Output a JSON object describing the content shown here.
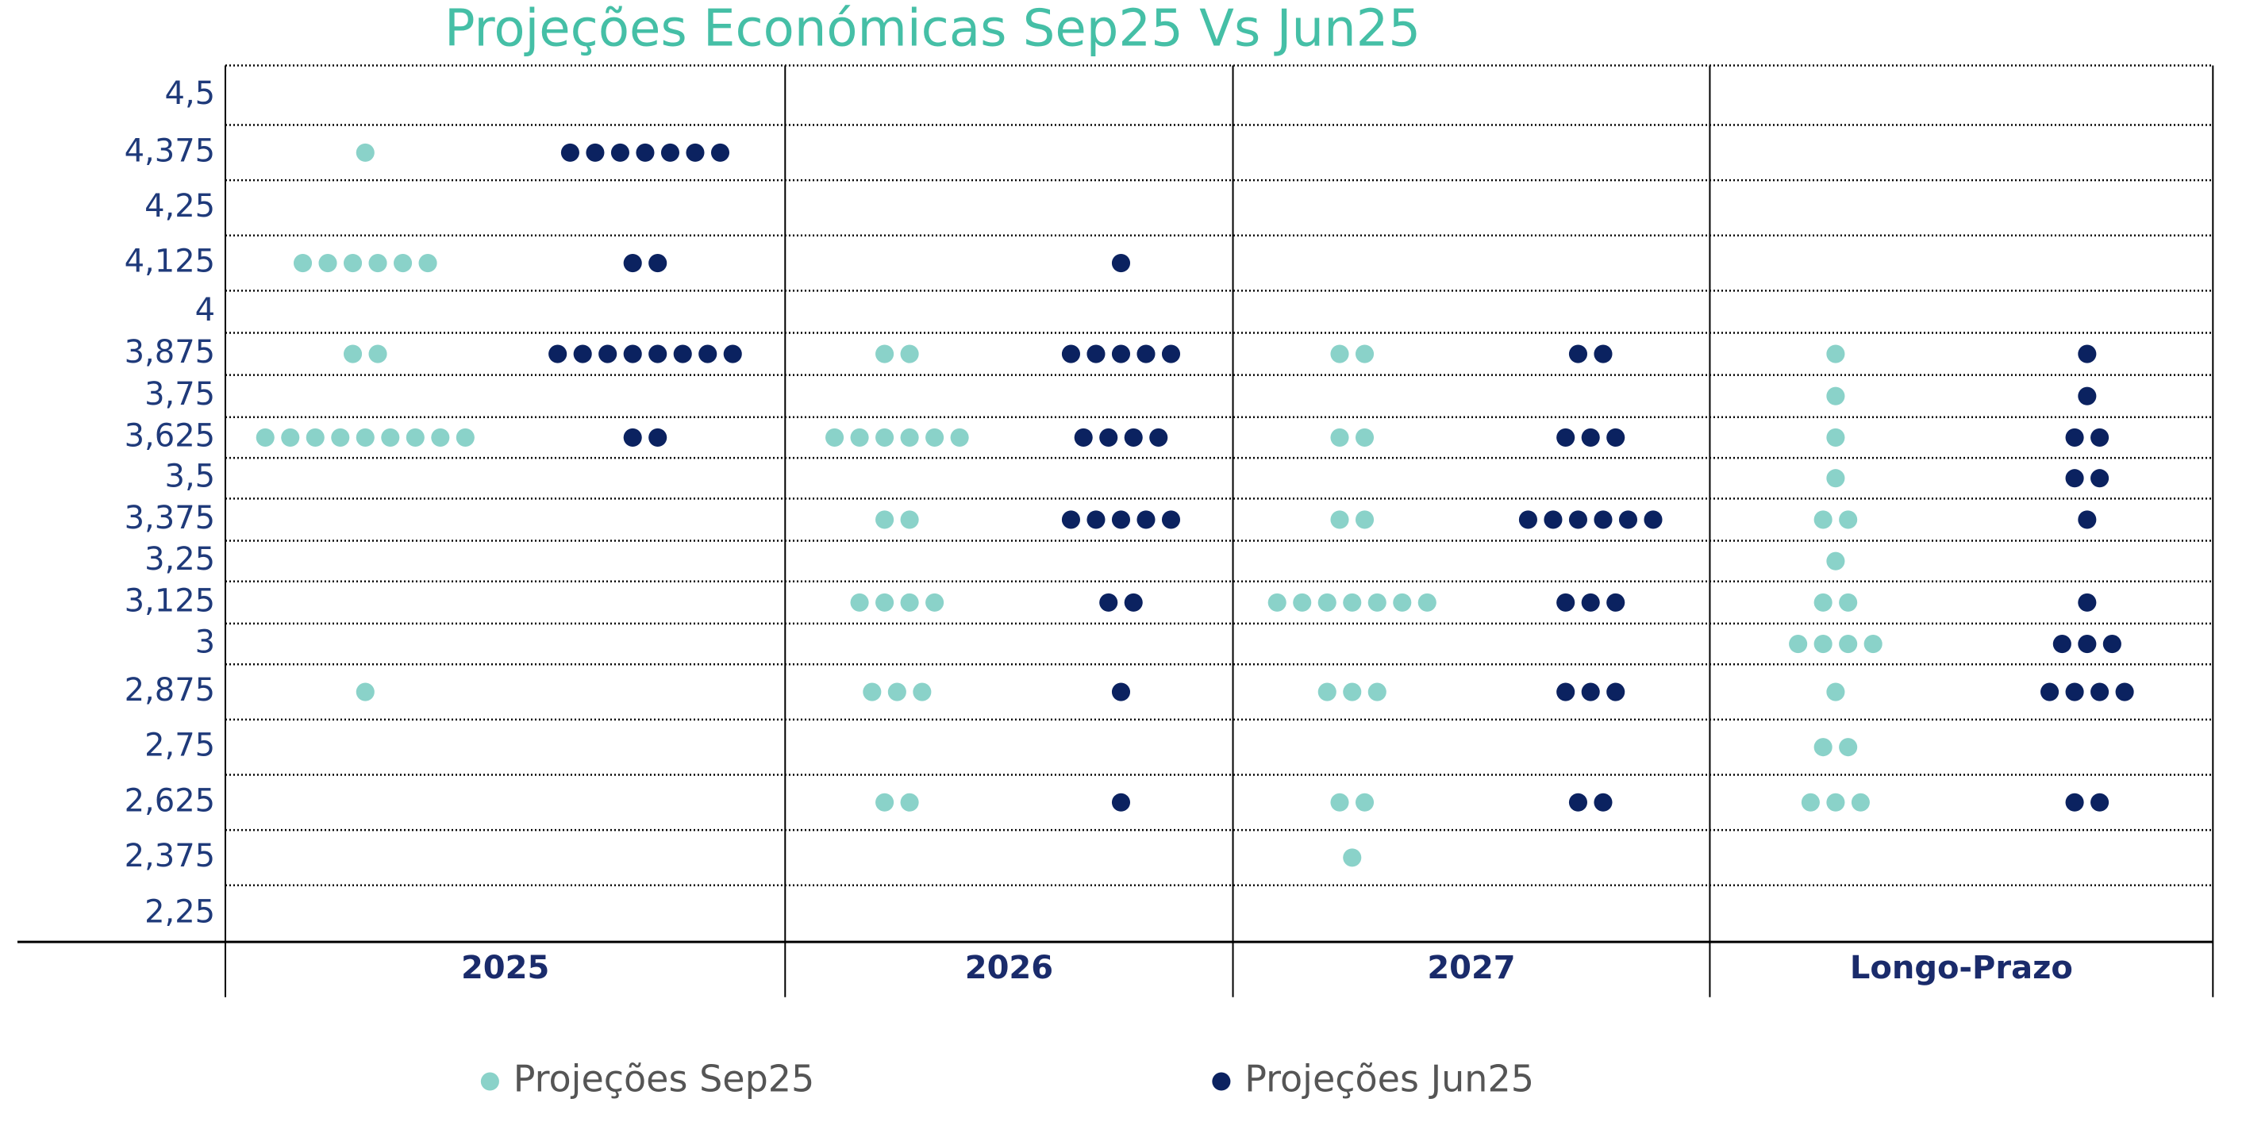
{
  "chart_data": {
    "type": "dot",
    "title": "Projeções Económicas Sep25 Vs Jun25",
    "categories": [
      "4,5",
      "4,375",
      "4,25",
      "4,125",
      "4",
      "3,875",
      "3,75",
      "3,625",
      "3,5",
      "3,375",
      "3,25",
      "3,125",
      "3",
      "2,875",
      "2,75",
      "2,625",
      "2,375",
      "2,25"
    ],
    "groups": [
      "2025",
      "2026",
      "2027",
      "Longo-Prazo"
    ],
    "series": [
      {
        "name": "Projeções Sep25",
        "color": "#8ad2c9",
        "values": [
          [
            null,
            1,
            null,
            6,
            null,
            2,
            null,
            9,
            null,
            null,
            null,
            null,
            null,
            1,
            null,
            null,
            null,
            null
          ],
          [
            null,
            null,
            null,
            null,
            null,
            2,
            null,
            6,
            null,
            2,
            null,
            4,
            null,
            3,
            null,
            2,
            null,
            null
          ],
          [
            null,
            null,
            null,
            null,
            null,
            2,
            null,
            2,
            null,
            2,
            null,
            7,
            null,
            3,
            null,
            2,
            1,
            null
          ],
          [
            null,
            null,
            null,
            null,
            null,
            1,
            1,
            1,
            1,
            2,
            1,
            2,
            4,
            1,
            2,
            3,
            null,
            null
          ]
        ]
      },
      {
        "name": "Projeções Jun25",
        "color": "#0b2260",
        "values": [
          [
            null,
            7,
            null,
            2,
            null,
            8,
            null,
            2,
            null,
            null,
            null,
            null,
            null,
            null,
            null,
            null,
            null,
            null
          ],
          [
            null,
            null,
            null,
            1,
            null,
            5,
            null,
            4,
            null,
            5,
            null,
            2,
            null,
            1,
            null,
            1,
            null,
            null
          ],
          [
            null,
            null,
            null,
            null,
            null,
            2,
            null,
            3,
            null,
            6,
            null,
            3,
            null,
            3,
            null,
            2,
            null,
            null
          ],
          [
            null,
            null,
            null,
            null,
            null,
            1,
            1,
            2,
            2,
            1,
            null,
            1,
            3,
            4,
            null,
            2,
            null,
            null
          ]
        ]
      }
    ]
  }
}
